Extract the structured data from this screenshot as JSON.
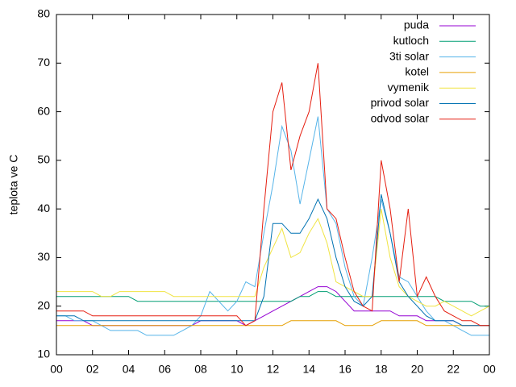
{
  "chart_data": {
    "type": "line",
    "ylabel": "teplota ve C",
    "x": [
      0,
      0.5,
      1,
      1.5,
      2,
      2.5,
      3,
      3.5,
      4,
      4.5,
      5,
      5.5,
      6,
      6.5,
      7,
      7.5,
      8,
      8.5,
      9,
      9.5,
      10,
      10.5,
      11,
      11.5,
      12,
      12.5,
      13,
      13.5,
      14,
      14.5,
      15,
      15.5,
      16,
      16.5,
      17,
      17.5,
      18,
      18.5,
      19,
      19.5,
      20,
      20.5,
      21,
      21.5,
      22,
      22.5,
      23,
      23.5,
      24
    ],
    "xlim": [
      0,
      24
    ],
    "xticks": [
      {
        "value": 0,
        "label": "00"
      },
      {
        "value": 2,
        "label": "02"
      },
      {
        "value": 4,
        "label": "04"
      },
      {
        "value": 6,
        "label": "06"
      },
      {
        "value": 8,
        "label": "08"
      },
      10,
      12,
      14,
      16,
      18,
      20,
      22,
      {
        "value": 24,
        "label": "00"
      }
    ],
    "ylim": [
      10,
      80
    ],
    "yticks": [
      10,
      20,
      30,
      40,
      50,
      60,
      70,
      80
    ],
    "legend": "top-right",
    "series": [
      {
        "name": "puda",
        "color": "#9400d3",
        "values": [
          17,
          17,
          17,
          17,
          16,
          16,
          16,
          16,
          16,
          16,
          16,
          16,
          16,
          16,
          16,
          16,
          17,
          17,
          17,
          17,
          17,
          16,
          17,
          18,
          19,
          20,
          21,
          22,
          23,
          24,
          24,
          23,
          21,
          19,
          19,
          19,
          19,
          19,
          18,
          18,
          18,
          17,
          17,
          17,
          17,
          16,
          16,
          16,
          16
        ]
      },
      {
        "name": "kutloch",
        "color": "#009e73",
        "values": [
          22,
          22,
          22,
          22,
          22,
          22,
          22,
          22,
          22,
          21,
          21,
          21,
          21,
          21,
          21,
          21,
          21,
          21,
          21,
          21,
          21,
          21,
          21,
          21,
          21,
          21,
          21,
          22,
          22,
          23,
          23,
          22,
          22,
          22,
          22,
          22,
          22,
          22,
          22,
          22,
          22,
          22,
          22,
          21,
          21,
          21,
          21,
          20,
          20
        ]
      },
      {
        "name": "3ti solar",
        "color": "#56b4e9",
        "values": [
          18,
          18,
          17,
          17,
          17,
          16,
          15,
          15,
          15,
          15,
          14,
          14,
          14,
          14,
          15,
          16,
          18,
          23,
          21,
          19,
          21,
          25,
          24,
          35,
          45,
          57,
          52,
          41,
          50,
          59,
          40,
          37,
          28,
          22,
          20,
          30,
          42,
          35,
          26,
          25,
          22,
          19,
          17,
          17,
          16,
          15,
          14,
          14,
          14
        ]
      },
      {
        "name": "kotel",
        "color": "#e69f00",
        "values": [
          16,
          16,
          16,
          16,
          16,
          16,
          16,
          16,
          16,
          16,
          16,
          16,
          16,
          16,
          16,
          16,
          16,
          16,
          16,
          16,
          16,
          16,
          16,
          16,
          16,
          16,
          17,
          17,
          17,
          17,
          17,
          17,
          16,
          16,
          16,
          16,
          17,
          17,
          17,
          17,
          17,
          16,
          16,
          16,
          16,
          16,
          16,
          16,
          16
        ]
      },
      {
        "name": "vymenik",
        "color": "#f0e442",
        "values": [
          23,
          23,
          23,
          23,
          23,
          22,
          22,
          23,
          23,
          23,
          23,
          23,
          23,
          22,
          22,
          22,
          22,
          22,
          22,
          22,
          22,
          22,
          22,
          28,
          32,
          36,
          30,
          31,
          35,
          38,
          33,
          25,
          24,
          23,
          22,
          22,
          40,
          30,
          24,
          22,
          21,
          20,
          20,
          21,
          20,
          19,
          18,
          19,
          20
        ]
      },
      {
        "name": "privod solar",
        "color": "#0072b2",
        "values": [
          18,
          18,
          18,
          17,
          17,
          17,
          17,
          17,
          17,
          17,
          17,
          17,
          17,
          17,
          17,
          17,
          17,
          17,
          17,
          17,
          17,
          17,
          17,
          22,
          37,
          37,
          35,
          35,
          38,
          42,
          38,
          30,
          24,
          21,
          20,
          22,
          43,
          35,
          25,
          22,
          20,
          18,
          17,
          17,
          17,
          16,
          16,
          16,
          16
        ]
      },
      {
        "name": "odvod solar",
        "color": "#e51e10",
        "values": [
          19,
          19,
          19,
          19,
          18,
          18,
          18,
          18,
          18,
          18,
          18,
          18,
          18,
          18,
          18,
          18,
          18,
          18,
          18,
          18,
          18,
          16,
          17,
          40,
          60,
          66,
          48,
          55,
          60,
          70,
          40,
          38,
          30,
          23,
          20,
          19,
          50,
          40,
          25,
          40,
          22,
          26,
          22,
          19,
          18,
          17,
          17,
          16,
          16
        ]
      }
    ]
  }
}
